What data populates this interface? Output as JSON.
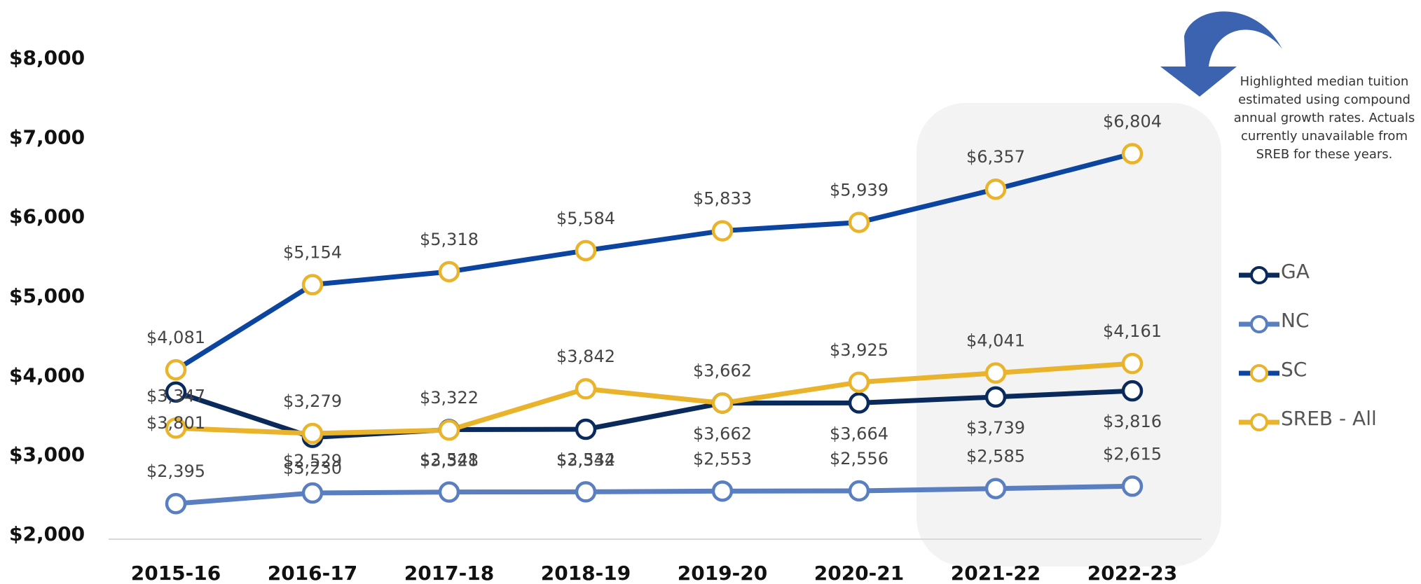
{
  "chart_data": {
    "type": "line",
    "annotation": "Highlighted median tuition estimated using compound annual growth rates. Actuals currently unavailable from SREB for these years.",
    "categories": [
      "2015-16",
      "2016-17",
      "2017-18",
      "2018-19",
      "2019-20",
      "2020-21",
      "2021-22",
      "2022-23"
    ],
    "ylim": [
      2000,
      8000
    ],
    "yticks": [
      {
        "value": 2000,
        "label": "$2,000"
      },
      {
        "value": 3000,
        "label": "$3,000"
      },
      {
        "value": 4000,
        "label": "$4,000"
      },
      {
        "value": 5000,
        "label": "$5,000"
      },
      {
        "value": 6000,
        "label": "$6,000"
      },
      {
        "value": 7000,
        "label": "$7,000"
      },
      {
        "value": 8000,
        "label": "$8,000"
      }
    ],
    "series": [
      {
        "name": "GA",
        "color": "#0b2a5c",
        "marker_color": "#0b2a5c",
        "values": [
          3801,
          3230,
          3328,
          3332,
          3662,
          3664,
          3739,
          3816
        ],
        "value_labels": [
          "$3,801",
          "$3,230",
          "$3,328",
          "$3,332",
          "$3,662",
          "$3,664",
          "$3,739",
          "$3,816"
        ]
      },
      {
        "name": "NC",
        "color": "#5a7fc0",
        "marker_color": "#5a7fc0",
        "values": [
          2395,
          2529,
          2541,
          2544,
          2553,
          2556,
          2585,
          2615
        ],
        "value_labels": [
          "$2,395",
          "$2,529",
          "$2,541",
          "$2,544",
          "$2,553",
          "$2,556",
          "$2,585",
          "$2,615"
        ]
      },
      {
        "name": "SC",
        "color": "#0b45a0",
        "marker_color": "#e9b32b",
        "values": [
          4081,
          5154,
          5318,
          5584,
          5833,
          5939,
          6357,
          6804
        ],
        "value_labels": [
          "$4,081",
          "$5,154",
          "$5,318",
          "$5,584",
          "$5,833",
          "$5,939",
          "$6,357",
          "$6,804"
        ]
      },
      {
        "name": "SREB - All",
        "color": "#e9b32b",
        "marker_color": "#e9b32b",
        "values": [
          3347,
          3279,
          3322,
          3842,
          3662,
          3925,
          4041,
          4161
        ],
        "value_labels": [
          "$3,347",
          "$3,279",
          "$3,322",
          "$3,842",
          "$3,662",
          "$3,925",
          "$4,041",
          "$4,161"
        ]
      }
    ],
    "highlight_categories": [
      "2021-22",
      "2022-23"
    ]
  }
}
